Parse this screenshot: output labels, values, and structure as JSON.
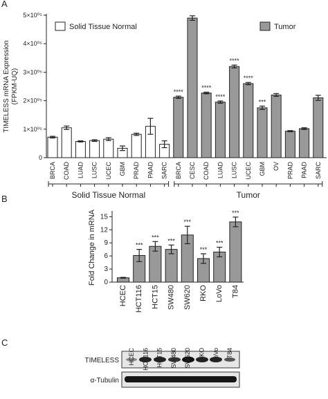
{
  "chart_data": [
    {
      "type": "bar",
      "label": "A",
      "ylabel": [
        "TIMELESS mRNA Expression",
        "(FPKM-UQ)"
      ],
      "ylim": [
        0,
        500000
      ],
      "yticks": [
        0,
        {
          "value": 100000,
          "label": "1×10⁰⁵"
        },
        {
          "value": 200000,
          "label": "2×10⁰⁵"
        },
        {
          "value": 300000,
          "label": "3×10⁰⁵"
        },
        {
          "value": 400000,
          "label": "4×10⁰⁵"
        },
        {
          "value": 500000,
          "label": "5×10⁰⁵"
        }
      ],
      "series": [
        {
          "name": "Solid Tissue Normal",
          "color": "#ffffff",
          "categories": [
            "BRCA",
            "COAD",
            "LUAD",
            "LUSC",
            "UCEC",
            "GBM",
            "PRAD",
            "PAAD",
            "SARC"
          ],
          "values": [
            72000,
            105000,
            57000,
            60000,
            65000,
            33000,
            82000,
            110000,
            47000
          ],
          "errors": [
            3000,
            6000,
            2000,
            3000,
            5000,
            8000,
            4000,
            28000,
            12000
          ]
        },
        {
          "name": "Tumor",
          "color": "#999999",
          "categories": [
            "BRCA",
            "CESC",
            "COAD",
            "LUAD",
            "LUSC",
            "UCEC",
            "GBM",
            "OV",
            "PRAD",
            "PAAD",
            "SARC"
          ],
          "values": [
            212000,
            490000,
            227000,
            195000,
            320000,
            260000,
            175000,
            220000,
            93000,
            102000,
            210000
          ],
          "errors": [
            4000,
            8000,
            3000,
            4000,
            5000,
            4000,
            6000,
            5000,
            2000,
            3000,
            9000
          ],
          "annotations": [
            "****",
            null,
            "****",
            "****",
            "****",
            "****",
            "***",
            null,
            null,
            null,
            null
          ]
        }
      ]
    },
    {
      "type": "bar",
      "label": "B",
      "ylabel": "Fold Change in mRNA",
      "ylim": [
        0,
        16
      ],
      "yticks": [
        0,
        3,
        6,
        9,
        12,
        15
      ],
      "series": [
        {
          "color": "#999999",
          "categories": [
            "HCEC",
            "HCT116",
            "HCT15",
            "SW480",
            "SW620",
            "RKO",
            "LoVo",
            "T84"
          ],
          "values": [
            1.0,
            6.1,
            8.2,
            7.5,
            10.8,
            5.4,
            6.9,
            13.8
          ],
          "errors": [
            0.1,
            1.4,
            1.1,
            1.0,
            2.0,
            1.1,
            1.1,
            1.1
          ],
          "annotations": [
            null,
            "***",
            "***",
            "***",
            "***",
            "***",
            "***",
            "***"
          ]
        }
      ]
    }
  ],
  "blot": {
    "label": "C",
    "lanes": [
      "HCEC",
      "HCT116",
      "HCT15",
      "SW480",
      "SW620",
      "RKO",
      "LoVo",
      "T84"
    ],
    "rows": [
      "TIMELESS",
      "α-Tubulin"
    ]
  }
}
